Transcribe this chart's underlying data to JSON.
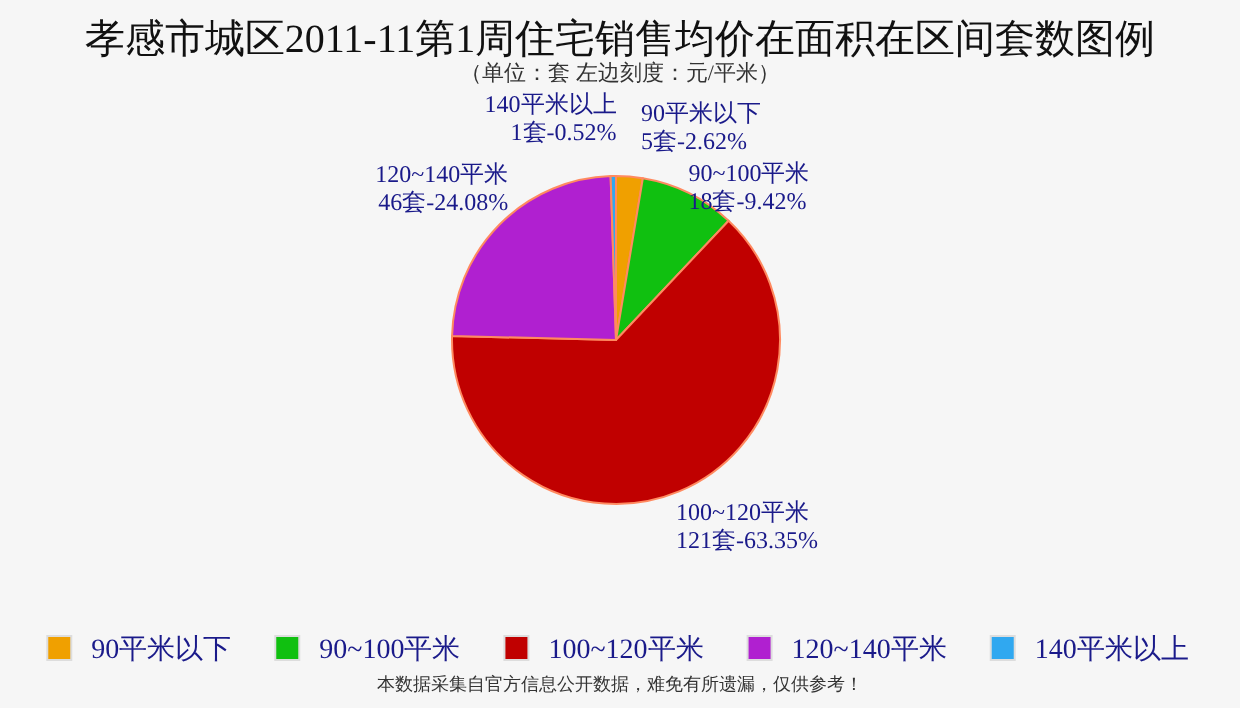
{
  "chart_data": {
    "type": "pie",
    "title": "孝感市城区2011-11第1周住宅销售均价在面积在区间套数图例",
    "subtitle": "（单位：套 左边刻度：元/平米）",
    "categories": [
      "90平米以下",
      "90~100平米",
      "100~120平米",
      "120~140平米",
      "140平米以上"
    ],
    "values": [
      5,
      18,
      121,
      46,
      1
    ],
    "colors": [
      "#f0a000",
      "#10c010",
      "#c00000",
      "#b020d0",
      "#30a8f0"
    ],
    "value_labels": [
      "5套-2.62%",
      "18套-9.42%",
      "121套-63.35%",
      "46套-24.08%",
      "1套-0.52%"
    ],
    "legend": "bottom",
    "annotations": [
      "本数据采集自官方信息公开数据，难免有所遗漏，仅供参考！"
    ]
  }
}
